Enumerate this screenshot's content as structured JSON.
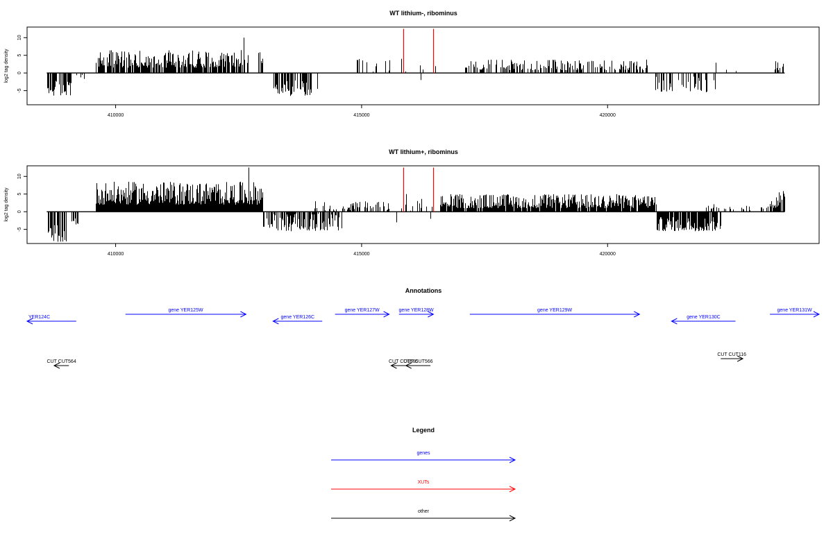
{
  "chart_data": [
    {
      "type": "bar",
      "title": "WT lithium-, ribominus",
      "xlabel": "",
      "ylabel": "log2 tag density",
      "xlim": [
        408200,
        424300
      ],
      "ylim": [
        -9,
        13
      ],
      "xticks": [
        410000,
        415000,
        420000
      ],
      "xtick_labels": [
        "410000",
        "415000",
        "420000"
      ],
      "yticks": [
        -5,
        0,
        5,
        10
      ],
      "ytick_labels": [
        "-5",
        "0",
        "5",
        "10"
      ],
      "grid": false,
      "baseline": {
        "from": 408600,
        "to": 423600,
        "y": 0
      },
      "series": [
        {
          "color": "#000000",
          "segments": [
            {
              "from": 408600,
              "to": 409100,
              "min": -6.5,
              "max": -2,
              "density": 0.7
            },
            {
              "from": 409200,
              "to": 409600,
              "min": -2,
              "max": -0.5,
              "density": 0.15
            },
            {
              "from": 409600,
              "to": 412700,
              "min": 1.5,
              "max": 6.5,
              "density": 0.8
            },
            {
              "from": 412900,
              "to": 413000,
              "min": 0.5,
              "max": 6,
              "density": 0.6
            },
            {
              "from": 413200,
              "to": 414000,
              "min": -6.5,
              "max": -2,
              "density": 0.7
            },
            {
              "from": 414600,
              "to": 415600,
              "min": 0.3,
              "max": 4,
              "density": 0.3
            },
            {
              "from": 415700,
              "to": 416500,
              "min": 0.3,
              "max": 3,
              "density": 0.1
            },
            {
              "from": 417100,
              "to": 420800,
              "min": 0.8,
              "max": 3.8,
              "density": 0.5
            },
            {
              "from": 420900,
              "to": 422200,
              "min": -5.5,
              "max": -1,
              "density": 0.45
            },
            {
              "from": 422000,
              "to": 422700,
              "min": 0.5,
              "max": 3,
              "density": 0.06
            },
            {
              "from": 423400,
              "to": 423600,
              "min": 0.5,
              "max": 3.5,
              "density": 0.5
            }
          ],
          "spikes": [
            {
              "x": 412600,
              "y": 10
            },
            {
              "x": 414100,
              "y": -4.5
            },
            {
              "x": 415800,
              "y": 4
            },
            {
              "x": 416200,
              "y": -2
            }
          ]
        },
        {
          "color": "#ff0000",
          "lines": [
            {
              "x": 415850,
              "y": 12.5
            },
            {
              "x": 416450,
              "y": 12.5
            }
          ]
        }
      ]
    },
    {
      "type": "bar",
      "title": "WT lithium+, ribominus",
      "xlabel": "",
      "ylabel": "log2 tag density",
      "xlim": [
        408200,
        424300
      ],
      "ylim": [
        -9,
        13
      ],
      "xticks": [
        410000,
        415000,
        420000
      ],
      "xtick_labels": [
        "410000",
        "415000",
        "420000"
      ],
      "yticks": [
        -5,
        0,
        5,
        10
      ],
      "ytick_labels": [
        "-5",
        "0",
        "5",
        "10"
      ],
      "grid": false,
      "baseline": {
        "from": 408600,
        "to": 423600,
        "y": 0
      },
      "series": [
        {
          "color": "#000000",
          "segments": [
            {
              "from": 408600,
              "to": 409000,
              "min": -8.5,
              "max": -3,
              "density": 0.9
            },
            {
              "from": 409000,
              "to": 409300,
              "min": -4,
              "max": -1,
              "density": 0.5
            },
            {
              "from": 409600,
              "to": 413000,
              "min": 2,
              "max": 8.5,
              "density": 1
            },
            {
              "from": 413000,
              "to": 414600,
              "min": -5.5,
              "max": -0.5,
              "density": 0.6
            },
            {
              "from": 414000,
              "to": 415600,
              "min": 0.3,
              "max": 3,
              "density": 0.4
            },
            {
              "from": 415700,
              "to": 416600,
              "min": 0.3,
              "max": 4,
              "density": 0.25
            },
            {
              "from": 416600,
              "to": 421000,
              "min": 1,
              "max": 5,
              "density": 0.9
            },
            {
              "from": 421000,
              "to": 422300,
              "min": -5.5,
              "max": -1.5,
              "density": 0.8
            },
            {
              "from": 422000,
              "to": 422800,
              "min": 0.5,
              "max": 2.5,
              "density": 0.2
            },
            {
              "from": 422700,
              "to": 423400,
              "min": 0.3,
              "max": 1.8,
              "density": 0.15
            },
            {
              "from": 423300,
              "to": 423600,
              "min": 1,
              "max": 6,
              "density": 0.8
            }
          ],
          "spikes": [
            {
              "x": 412700,
              "y": 12.5
            },
            {
              "x": 415700,
              "y": -3
            },
            {
              "x": 415900,
              "y": 5
            },
            {
              "x": 416400,
              "y": -2
            }
          ]
        },
        {
          "color": "#ff0000",
          "lines": [
            {
              "x": 415850,
              "y": 12.5
            },
            {
              "x": 416450,
              "y": 12.5
            }
          ]
        }
      ]
    }
  ],
  "annotations": {
    "title": "Annotations",
    "genes": [
      {
        "label": "YER124C",
        "from": 408200,
        "to": 409200,
        "strand": "-",
        "row": 2
      },
      {
        "label": "gene YER125W",
        "from": 410200,
        "to": 412650,
        "strand": "+",
        "row": 1
      },
      {
        "label": "gene YER126C",
        "from": 413200,
        "to": 414200,
        "strand": "-",
        "row": 2
      },
      {
        "label": "gene YER127W",
        "from": 414460,
        "to": 415560,
        "strand": "+",
        "row": 1
      },
      {
        "label": "gene YER128W",
        "from": 415760,
        "to": 416460,
        "strand": "+",
        "row": 1
      },
      {
        "label": "gene YER129W",
        "from": 417200,
        "to": 420650,
        "strand": "+",
        "row": 1
      },
      {
        "label": "gene YER130C",
        "from": 421300,
        "to": 422600,
        "strand": "-",
        "row": 2
      },
      {
        "label": "gene YER131W",
        "from": 423300,
        "to": 424300,
        "strand": "+",
        "row": 1
      }
    ],
    "others": [
      {
        "label": "CUT CUT564",
        "from": 408750,
        "to": 409050,
        "strand": "-"
      },
      {
        "label": "CUT CUT565",
        "from": 415600,
        "to": 416100,
        "strand": "-"
      },
      {
        "label": "CUT CUT566",
        "from": 415900,
        "to": 416400,
        "strand": "-"
      },
      {
        "label": "CUT CUT116",
        "from": 422300,
        "to": 422750,
        "strand": "+"
      }
    ]
  },
  "legend": {
    "title": "Legend",
    "entries": [
      {
        "label": "genes",
        "color": "#0000ff"
      },
      {
        "label": "XUTs",
        "color": "#ff0000"
      },
      {
        "label": "other",
        "color": "#000000"
      }
    ]
  },
  "colors": {
    "gene": "#0000ff",
    "xut": "#ff0000",
    "other": "#000000"
  }
}
